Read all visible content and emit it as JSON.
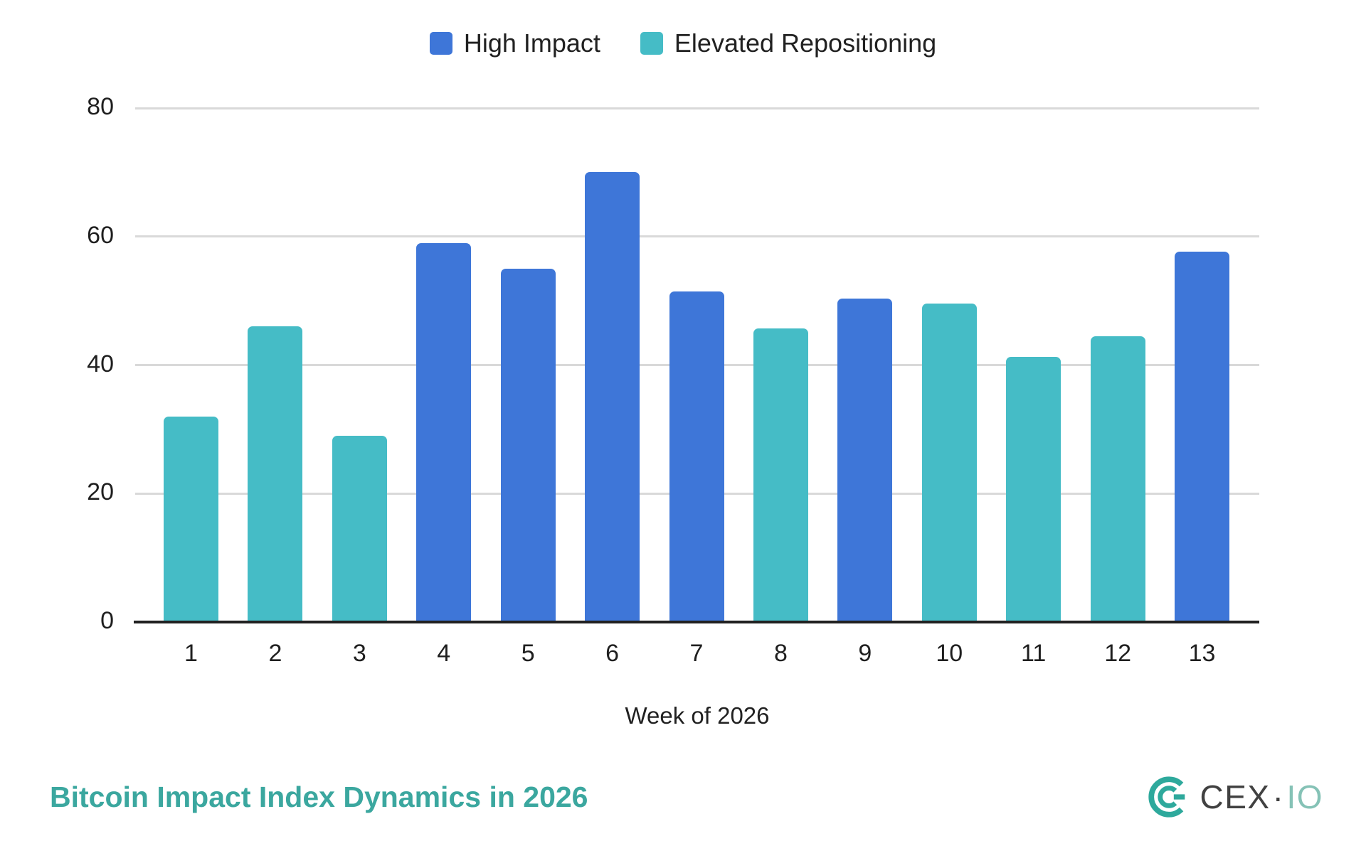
{
  "colors": {
    "background": "#ffffff",
    "grid": "#d9d9d9",
    "baseline": "#212121",
    "axis_text": "#1f1f1f",
    "title": "#3BA79F"
  },
  "legend": {
    "items": [
      {
        "label": "High Impact",
        "color": "#3E76D8"
      },
      {
        "label": "Elevated Repositioning",
        "color": "#45BCC6"
      }
    ]
  },
  "chart_data": {
    "type": "bar",
    "title": "Bitcoin Impact Index Dynamics in 2026",
    "xlabel": "Week of 2026",
    "ylabel": "",
    "categories": [
      "1",
      "2",
      "3",
      "4",
      "5",
      "6",
      "7",
      "8",
      "9",
      "10",
      "11",
      "12",
      "13"
    ],
    "ylim": [
      0,
      80
    ],
    "yticks": [
      0,
      20,
      40,
      60,
      80
    ],
    "grid": true,
    "legend_position": "top-center",
    "series": [
      {
        "name": "High Impact",
        "color": "#3E76D8",
        "values": [
          null,
          null,
          null,
          59,
          55,
          70,
          51.5,
          null,
          50.3,
          null,
          null,
          null,
          57.6
        ]
      },
      {
        "name": "Elevated Repositioning",
        "color": "#45BCC6",
        "values": [
          32,
          46,
          29,
          null,
          null,
          null,
          null,
          45.7,
          null,
          49.6,
          41.3,
          44.5,
          null
        ]
      }
    ],
    "bars": [
      {
        "week": "1",
        "value": 32,
        "series": "Elevated Repositioning"
      },
      {
        "week": "2",
        "value": 46,
        "series": "Elevated Repositioning"
      },
      {
        "week": "3",
        "value": 29,
        "series": "Elevated Repositioning"
      },
      {
        "week": "4",
        "value": 59,
        "series": "High Impact"
      },
      {
        "week": "5",
        "value": 55,
        "series": "High Impact"
      },
      {
        "week": "6",
        "value": 70,
        "series": "High Impact"
      },
      {
        "week": "7",
        "value": 51.5,
        "series": "High Impact"
      },
      {
        "week": "8",
        "value": 45.7,
        "series": "Elevated Repositioning"
      },
      {
        "week": "9",
        "value": 50.3,
        "series": "High Impact"
      },
      {
        "week": "10",
        "value": 49.6,
        "series": "Elevated Repositioning"
      },
      {
        "week": "11",
        "value": 41.3,
        "series": "Elevated Repositioning"
      },
      {
        "week": "12",
        "value": 44.5,
        "series": "Elevated Repositioning"
      },
      {
        "week": "13",
        "value": 57.6,
        "series": "High Impact"
      }
    ]
  },
  "logo": {
    "brand": "CEX",
    "separator": "·",
    "suffix": "IO",
    "mark_color": "#2EA99C",
    "brand_color": "#414141",
    "suffix_color": "#85C2B6"
  }
}
